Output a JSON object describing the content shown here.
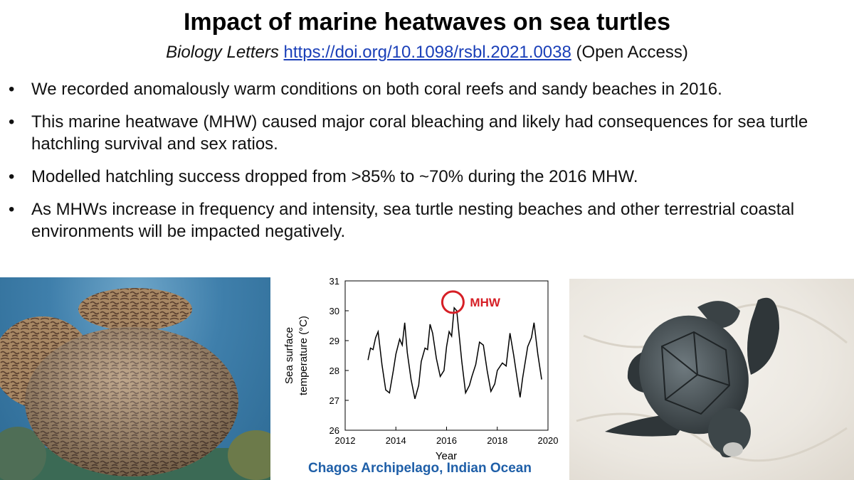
{
  "title": "Impact of marine heatwaves on sea turtles",
  "subtitle": {
    "journal": "Biology  Letters",
    "doi": "https://doi.org/10.1098/rsbl.2021.0038",
    "access": "(Open Access)"
  },
  "bullets": [
    "We recorded anomalously warm conditions on both coral reefs and sandy beaches in 2016.",
    "This marine heatwave (MHW) caused major coral bleaching and likely had consequences for sea turtle hatchling survival and sex ratios.",
    "Modelled hatchling success dropped from >85% to ~70% during the 2016 MHW.",
    "As MHWs increase in frequency and intensity, sea turtle nesting beaches and other terrestrial coastal environments will be impacted negatively."
  ],
  "bullet_symbol": "•",
  "caption": "Chagos Archipelago, Indian Ocean",
  "chart_data": {
    "type": "line",
    "xlabel": "Year",
    "ylabel_lines": [
      "Sea surface",
      "temperature (°C)"
    ],
    "xlim": [
      2012,
      2020
    ],
    "ylim": [
      26,
      31
    ],
    "x_ticks": [
      2012,
      2014,
      2016,
      2018,
      2020
    ],
    "y_ticks": [
      26,
      27,
      28,
      29,
      30,
      31
    ],
    "annotation": {
      "label": "MHW",
      "x": 2016.25,
      "y": 30.05,
      "color": "#d61f26"
    },
    "series": [
      {
        "x": [
          2012.9,
          2013.0,
          2013.1,
          2013.2,
          2013.3,
          2013.45,
          2013.6,
          2013.75,
          2013.9,
          2014.0,
          2014.15,
          2014.25,
          2014.35,
          2014.45,
          2014.6,
          2014.75,
          2014.9,
          2015.0,
          2015.15,
          2015.25,
          2015.35,
          2015.45,
          2015.6,
          2015.75,
          2015.9,
          2016.0,
          2016.1,
          2016.2,
          2016.3,
          2016.4,
          2016.6,
          2016.75,
          2016.9,
          2017.0,
          2017.15,
          2017.3,
          2017.45,
          2017.6,
          2017.75,
          2017.9,
          2018.0,
          2018.2,
          2018.35,
          2018.5,
          2018.65,
          2018.8,
          2018.9,
          2019.0,
          2019.2,
          2019.35,
          2019.45,
          2019.6,
          2019.75
        ],
        "y": [
          28.35,
          28.75,
          28.7,
          29.1,
          29.3,
          28.2,
          27.35,
          27.25,
          28.0,
          28.55,
          29.05,
          28.85,
          29.6,
          28.6,
          27.7,
          27.05,
          27.5,
          28.3,
          28.75,
          28.7,
          29.55,
          29.25,
          28.4,
          27.8,
          28.0,
          28.8,
          29.3,
          29.15,
          30.1,
          30.0,
          28.3,
          27.25,
          27.5,
          27.8,
          28.2,
          28.95,
          28.85,
          28.0,
          27.3,
          27.55,
          28.0,
          28.25,
          28.15,
          29.25,
          28.5,
          27.65,
          27.1,
          27.75,
          28.8,
          29.1,
          29.6,
          28.55,
          27.7
        ]
      }
    ]
  }
}
